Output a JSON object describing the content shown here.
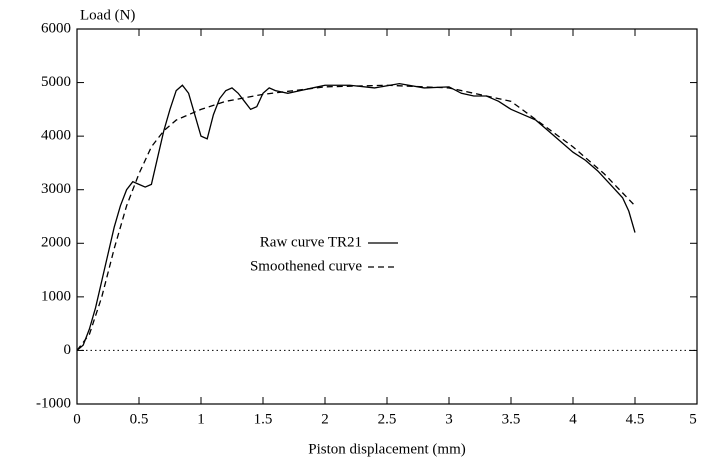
{
  "chart_data": {
    "type": "line",
    "ylabel": "Load (N)",
    "xlabel": "Piston displacement (mm)",
    "xlim": [
      0,
      5
    ],
    "xticks": [
      0,
      0.5,
      1,
      1.5,
      2,
      2.5,
      3,
      3.5,
      4,
      4.5,
      5
    ],
    "ylim": [
      -1000,
      6000
    ],
    "yticks": [
      -1000,
      0,
      1000,
      2000,
      3000,
      4000,
      5000,
      6000
    ],
    "series": [
      {
        "name": "Raw curve TR21",
        "color": "#000000",
        "dash": "solid",
        "x": [
          0,
          0.05,
          0.1,
          0.15,
          0.2,
          0.25,
          0.3,
          0.35,
          0.4,
          0.45,
          0.5,
          0.55,
          0.6,
          0.65,
          0.7,
          0.75,
          0.8,
          0.85,
          0.9,
          0.95,
          1.0,
          1.05,
          1.1,
          1.15,
          1.2,
          1.25,
          1.3,
          1.35,
          1.4,
          1.45,
          1.5,
          1.55,
          1.6,
          1.7,
          1.8,
          1.9,
          2.0,
          2.2,
          2.4,
          2.6,
          2.8,
          3.0,
          3.1,
          3.2,
          3.3,
          3.4,
          3.5,
          3.6,
          3.7,
          3.8,
          3.9,
          4.0,
          4.1,
          4.2,
          4.3,
          4.4,
          4.45,
          4.5
        ],
        "values": [
          0,
          100,
          400,
          800,
          1300,
          1800,
          2300,
          2700,
          3000,
          3150,
          3100,
          3050,
          3100,
          3600,
          4100,
          4500,
          4850,
          4950,
          4800,
          4400,
          4000,
          3950,
          4400,
          4700,
          4850,
          4900,
          4800,
          4650,
          4500,
          4550,
          4800,
          4900,
          4850,
          4800,
          4850,
          4900,
          4950,
          4950,
          4900,
          4980,
          4900,
          4920,
          4800,
          4750,
          4750,
          4650,
          4500,
          4400,
          4300,
          4100,
          3900,
          3700,
          3550,
          3350,
          3100,
          2850,
          2600,
          2200
        ]
      },
      {
        "name": "Smoothened curve",
        "color": "#000000",
        "dash": "dashed",
        "x": [
          0,
          0.1,
          0.2,
          0.3,
          0.4,
          0.5,
          0.6,
          0.7,
          0.8,
          1.0,
          1.2,
          1.5,
          2.0,
          2.5,
          3.0,
          3.5,
          4.0,
          4.25,
          4.5
        ],
        "values": [
          0,
          300,
          1000,
          1900,
          2700,
          3300,
          3800,
          4100,
          4300,
          4500,
          4650,
          4780,
          4920,
          4950,
          4900,
          4650,
          3800,
          3300,
          2700
        ]
      }
    ]
  }
}
